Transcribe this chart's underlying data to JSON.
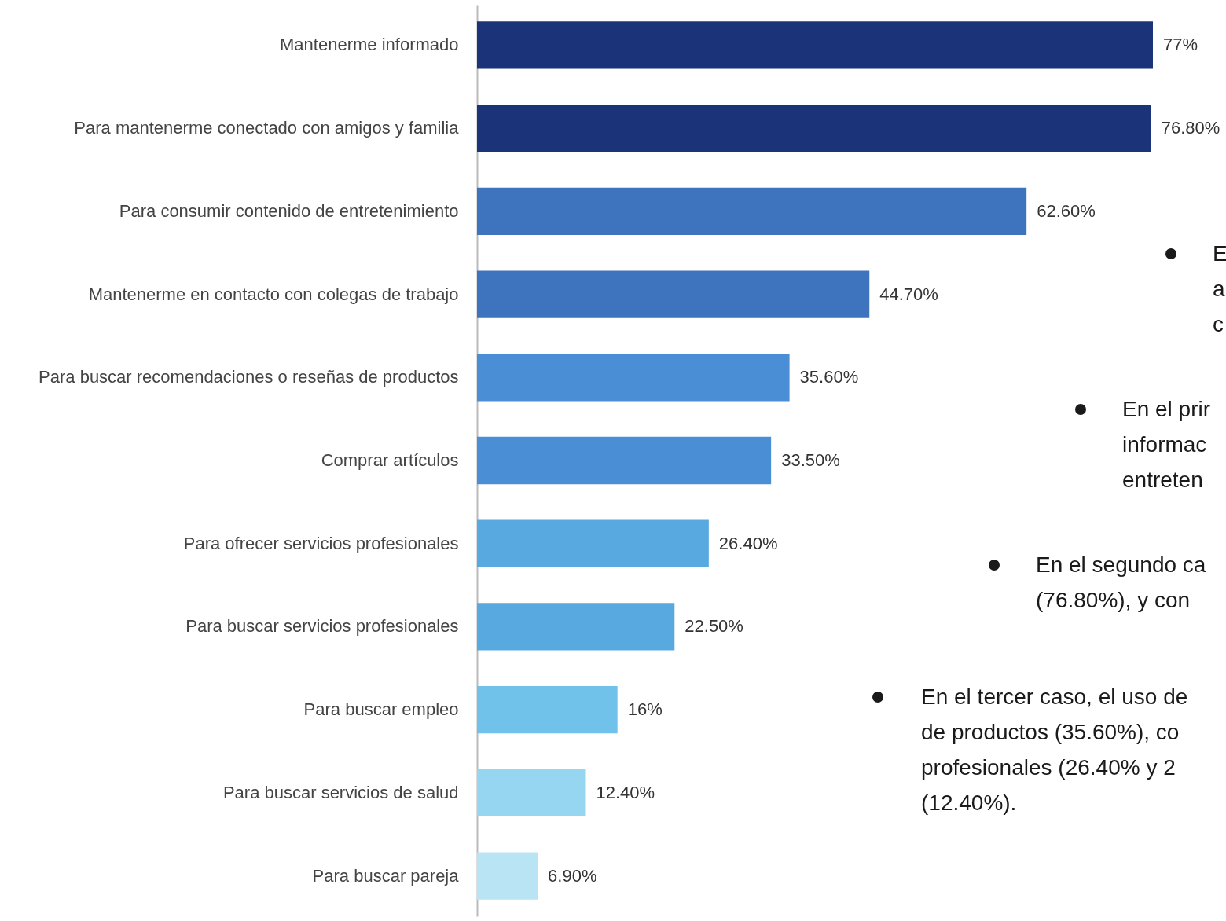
{
  "chart_data": {
    "type": "bar",
    "orientation": "horizontal",
    "categories": [
      "Mantenerme informado",
      "Para mantenerme conectado con amigos y familia",
      "Para consumir contenido de entretenimiento",
      "Mantenerme en contacto con colegas de trabajo",
      "Para buscar recomendaciones o reseñas de productos",
      "Comprar artículos",
      "Para ofrecer servicios profesionales",
      "Para buscar servicios profesionales",
      "Para buscar empleo",
      "Para buscar servicios de salud",
      "Para buscar pareja"
    ],
    "values": [
      77,
      76.8,
      62.6,
      44.7,
      35.6,
      33.5,
      26.4,
      22.5,
      16,
      12.4,
      6.9
    ],
    "value_labels": [
      "77%",
      "76.80%",
      "62.60%",
      "44.70%",
      "35.60%",
      "33.50%",
      "26.40%",
      "22.50%",
      "16%",
      "12.40%",
      "6.90%"
    ],
    "colors": [
      "#1b3378",
      "#1b3378",
      "#3e73bd",
      "#3e73bd",
      "#4a8fd5",
      "#4a8fd5",
      "#58a9e0",
      "#58a9e0",
      "#71c2ea",
      "#96d6f0",
      "#b9e4f4"
    ],
    "annotations": [
      "E\na\nc",
      "En el prir\ninformac\nentreten",
      "En el segundo ca\n(76.80%), y con",
      "En el tercer caso, el uso de\nde productos (35.60%), co\nprofesionales (26.40% y 2\n(12.40%)."
    ]
  }
}
